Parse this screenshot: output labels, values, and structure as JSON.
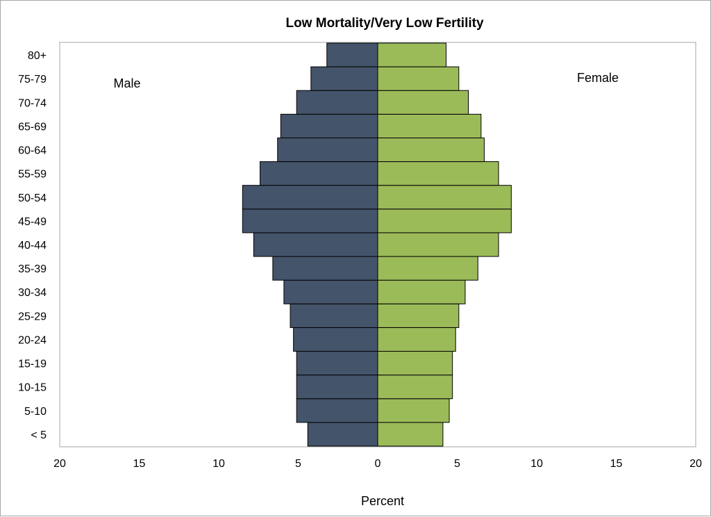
{
  "chart_data": {
    "type": "bar",
    "orientation": "horizontal",
    "title": "Low Mortality/Very Low Fertility",
    "xlabel": "Percent",
    "ylabel": "",
    "xlim": [
      -20,
      20
    ],
    "xticks": [
      -20,
      -15,
      -10,
      -5,
      0,
      5,
      10,
      15,
      20
    ],
    "xtick_labels": [
      "20",
      "15",
      "10",
      "5",
      "0",
      "5",
      "10",
      "15",
      "20"
    ],
    "categories": [
      "< 5",
      "5-10",
      "10-15",
      "15-19",
      "20-24",
      "25-29",
      "30-34",
      "35-39",
      "40-44",
      "45-49",
      "50-54",
      "55-59",
      "60-64",
      "65-69",
      "70-74",
      "75-79",
      "80+"
    ],
    "series": [
      {
        "name": "Male",
        "color": "#44546a",
        "values": [
          4.4,
          5.1,
          5.1,
          5.1,
          5.3,
          5.5,
          5.9,
          6.6,
          7.8,
          8.5,
          8.5,
          7.4,
          6.3,
          6.1,
          5.1,
          4.2,
          3.2
        ]
      },
      {
        "name": "Female",
        "color": "#9bbb59",
        "values": [
          4.1,
          4.5,
          4.7,
          4.7,
          4.9,
          5.1,
          5.5,
          6.3,
          7.6,
          8.4,
          8.4,
          7.6,
          6.7,
          6.5,
          5.7,
          5.1,
          4.3
        ]
      }
    ],
    "annotations": [
      {
        "text": "Male"
      },
      {
        "text": "Female"
      }
    ],
    "grid": false,
    "legend": "none"
  }
}
